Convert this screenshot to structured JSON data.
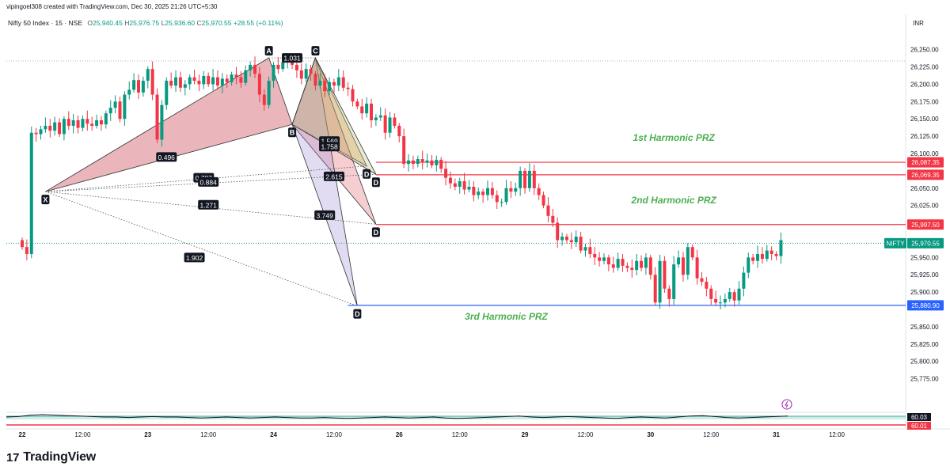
{
  "header": {
    "credit": "vipingoel308 created with TradingView.com, Dec 30, 2025 21:26 UTC+5:30",
    "symbol": "Nifty 50 Index · 15 · NSE",
    "o_label": "O",
    "o": "25,940.45",
    "h_label": "H",
    "h": "25,976.75",
    "l_label": "L",
    "l": "25,936.60",
    "c_label": "C",
    "c": "25,970.55",
    "change": "+28.55 (+0.11%)"
  },
  "logo": {
    "mark": "17",
    "text": "TradingView"
  },
  "colors": {
    "up": "#089981",
    "down": "#f23645",
    "prz": "#f23645",
    "support": "#2962ff",
    "fib": "#e8a6a6",
    "prz_text": "#4caf50"
  },
  "chart_data": {
    "type": "candlestick",
    "currency": "INR",
    "ylim": [
      25730,
      26285
    ],
    "y_ticks": [
      "26,250.00",
      "26,225.00",
      "26,200.00",
      "26,175.00",
      "26,150.00",
      "26,125.00",
      "26,100.00",
      "26,050.00",
      "26,025.00",
      "25,950.00",
      "25,925.00",
      "25,900.00",
      "25,850.00",
      "25,825.00",
      "25,800.00",
      "25,775.00"
    ],
    "x_ticks": [
      {
        "i": 0,
        "label": "22",
        "bold": true
      },
      {
        "i": 13,
        "label": "12:00"
      },
      {
        "i": 27,
        "label": "23",
        "bold": true
      },
      {
        "i": 40,
        "label": "12:00"
      },
      {
        "i": 54,
        "label": "24",
        "bold": true
      },
      {
        "i": 67,
        "label": "12:00"
      },
      {
        "i": 81,
        "label": "26",
        "bold": true
      },
      {
        "i": 94,
        "label": "12:00"
      },
      {
        "i": 108,
        "label": "29",
        "bold": true
      },
      {
        "i": 121,
        "label": "12:00"
      },
      {
        "i": 135,
        "label": "30",
        "bold": true
      },
      {
        "i": 148,
        "label": "12:00"
      },
      {
        "i": 162,
        "label": "31",
        "bold": true
      },
      {
        "i": 175,
        "label": "12:00"
      }
    ],
    "candles": [
      25965,
      25955,
      26130,
      26128,
      26135,
      26140,
      26133,
      26145,
      26128,
      26150,
      26140,
      26148,
      26137,
      26150,
      26143,
      26140,
      26148,
      26142,
      26158,
      26166,
      26175,
      26150,
      26185,
      26192,
      26206,
      26188,
      26205,
      26222,
      26185,
      26120,
      26170,
      26205,
      26198,
      26210,
      26195,
      26200,
      26210,
      26205,
      26200,
      26212,
      26200,
      26210,
      26198,
      26208,
      26203,
      26214,
      26210,
      26202,
      26220,
      26228,
      26215,
      26185,
      26170,
      26205,
      26228,
      26222,
      26232,
      26238,
      26228,
      26220,
      26208,
      26222,
      26215,
      26198,
      26205,
      26190,
      26203,
      26198,
      26210,
      26195,
      26193,
      26175,
      26168,
      26158,
      26172,
      26148,
      26152,
      26155,
      26130,
      26152,
      26140,
      26125,
      26085,
      26090,
      26085,
      26092,
      26087,
      26090,
      26083,
      26091,
      26078,
      26065,
      26057,
      26052,
      26060,
      26048,
      26052,
      26040,
      26045,
      26040,
      26050,
      26040,
      26030,
      26030,
      26050,
      26045,
      26050,
      26075,
      26050,
      26075,
      26050,
      26040,
      26025,
      26010,
      26000,
      25975,
      25980,
      25975,
      25972,
      25980,
      25960,
      25965,
      25955,
      25950,
      25945,
      25950,
      25940,
      25935,
      25948,
      25938,
      25935,
      25932,
      25945,
      25935,
      25950,
      25925,
      25885,
      25945,
      25905,
      25890,
      25940,
      25950,
      25925,
      25965,
      25950,
      25920,
      25915,
      25905,
      25890,
      25885,
      25885,
      25890,
      25900,
      25888,
      25905,
      25928,
      25950,
      25945,
      25955,
      25948,
      25960,
      25955,
      25952,
      25975
    ],
    "dates": [
      {
        "index": 0,
        "date": "22 Dec 09:15"
      },
      {
        "index": 27,
        "date": "23 Dec 09:15"
      },
      {
        "index": 54,
        "date": "24 Dec 09:15"
      },
      {
        "index": 81,
        "date": "26 Dec 09:15"
      },
      {
        "index": 108,
        "date": "29 Dec 09:15"
      },
      {
        "index": 135,
        "date": "30 Dec 09:15"
      }
    ],
    "price_labels": [
      {
        "id": "prz1_price",
        "value": 26087.35,
        "text": "26,087.35",
        "color": "#f23645"
      },
      {
        "id": "prz1b_price",
        "value": 26069.35,
        "text": "26,069.35",
        "color": "#f23645"
      },
      {
        "id": "prz2_price",
        "value": 25997.5,
        "text": "25,997.50",
        "color": "#f23645"
      },
      {
        "id": "last_price",
        "value": 25970.55,
        "text": "25,970.55",
        "color": "#089981",
        "tag": "NIFTY"
      },
      {
        "id": "prz3_price",
        "value": 25880.9,
        "text": "25,880.90",
        "color": "#2962ff"
      }
    ],
    "levels": [
      {
        "value": 26087.35,
        "from": 76,
        "color": "#f23645"
      },
      {
        "value": 26069.35,
        "from": 76,
        "color": "#f23645"
      },
      {
        "value": 25997.5,
        "from": 76,
        "color": "#f23645"
      },
      {
        "value": 25880.9,
        "from": 70,
        "color": "#2962ff"
      }
    ],
    "pattern_points": [
      {
        "label": "X",
        "i": 5,
        "p": 26045
      },
      {
        "label": "A",
        "i": 53,
        "p": 26238
      },
      {
        "label": "B",
        "i": 58,
        "p": 26142
      },
      {
        "label": "C",
        "i": 63,
        "p": 26238
      },
      {
        "label": "D",
        "i": 74,
        "p": 26082
      },
      {
        "label": "D",
        "i": 76,
        "p": 26070
      },
      {
        "label": "D",
        "i": 76,
        "p": 25998
      },
      {
        "label": "D",
        "i": 72,
        "p": 25880
      }
    ],
    "ratios": [
      {
        "text": "0.496",
        "i": 31,
        "p": 26095
      },
      {
        "text": "1.031",
        "i": 58,
        "p": 26238
      },
      {
        "text": "1.569",
        "i": 66,
        "p": 26118
      },
      {
        "text": "1.758",
        "i": 66,
        "p": 26110
      },
      {
        "text": "0.787",
        "i": 39,
        "p": 26065
      },
      {
        "text": "0.884",
        "i": 40,
        "p": 26059
      },
      {
        "text": "2.615",
        "i": 67,
        "p": 26067
      },
      {
        "text": "1.271",
        "i": 40,
        "p": 26026
      },
      {
        "text": "3.749",
        "i": 65,
        "p": 26011
      },
      {
        "text": "1.902",
        "i": 37,
        "p": 25950
      }
    ],
    "annotations": [
      {
        "text": "1st Harmonic PRZ",
        "i": 140,
        "p": 26118
      },
      {
        "text": "2nd Harmonic PRZ",
        "i": 140,
        "p": 26028
      },
      {
        "text": "3rd Harmonic PRZ",
        "i": 104,
        "p": 25860
      }
    ],
    "indicator": {
      "values_text": [
        "60.03",
        "60.01"
      ],
      "line": [
        0.5,
        0.45,
        0.3,
        0.25,
        0.3,
        0.35,
        0.4,
        0.45,
        0.5,
        0.5,
        0.55,
        0.5,
        0.45,
        0.5,
        0.5,
        0.55,
        0.6,
        0.55,
        0.5,
        0.55,
        0.6,
        0.55,
        0.5,
        0.55,
        0.6,
        0.6,
        0.55,
        0.6,
        0.65,
        0.6,
        0.55,
        0.5,
        0.55,
        0.6,
        0.55,
        0.5,
        0.6,
        0.65,
        0.6,
        0.55,
        0.5,
        0.45,
        0.4,
        0.5,
        0.55,
        0.5,
        0.45,
        0.5,
        0.55,
        0.6,
        0.65,
        0.55,
        0.5,
        0.55,
        0.6,
        0.5,
        0.4,
        0.35,
        0.45,
        0.55,
        0.6,
        0.55,
        0.5,
        0.45,
        0.4
      ]
    }
  }
}
